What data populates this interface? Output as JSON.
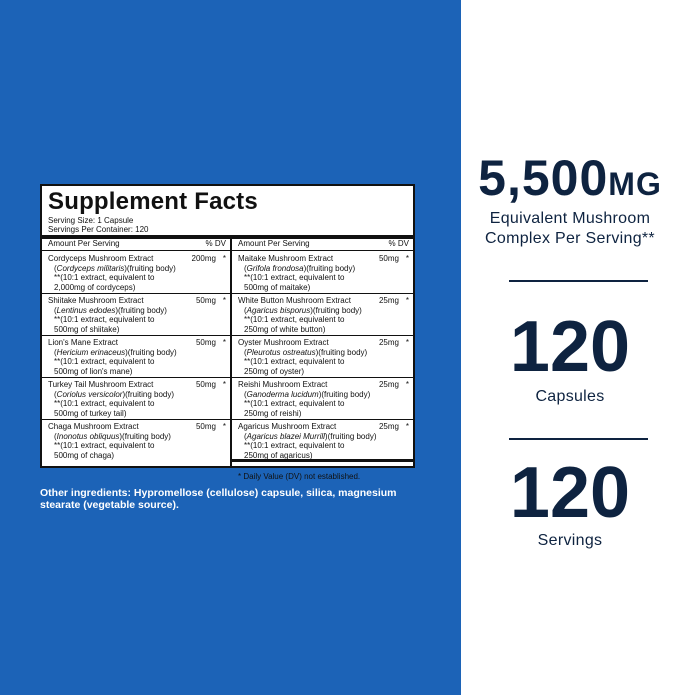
{
  "panel": {
    "title": "Supplement Facts",
    "serving_size": "Serving Size: 1 Capsule",
    "servings_per_container": "Servings Per Container: 120",
    "header_amount": "Amount Per Serving",
    "header_dv": "% DV",
    "left_items": [
      {
        "name": "Cordyceps Mushroom Extract",
        "amount": "200mg",
        "star": "*",
        "sci_pre": "(",
        "sci": "Cordyceps militaris",
        "sci_post": ")(fruiting body)",
        "eq1": "**(10:1 extract, equivalent to",
        "eq2": "2,000mg of cordyceps)"
      },
      {
        "name": "Shiitake Mushroom Extract",
        "amount": "50mg",
        "star": "*",
        "sci_pre": "(",
        "sci": "Lentinus edodes",
        "sci_post": ")(fruiting body)",
        "eq1": "**(10:1 extract, equivalent to",
        "eq2": "500mg of shiitake)"
      },
      {
        "name": "Lion's Mane Extract",
        "amount": "50mg",
        "star": "*",
        "sci_pre": "(",
        "sci": "Hericium erinaceus",
        "sci_post": ")(fruiting body)",
        "eq1": "**(10:1 extract, equivalent to",
        "eq2": "500mg of lion's mane)"
      },
      {
        "name": "Turkey Tail Mushroom Extract",
        "amount": "50mg",
        "star": "*",
        "sci_pre": "(",
        "sci": "Coriolus versicolor",
        "sci_post": ")(fruiting body)",
        "eq1": "**(10:1 extract, equivalent to",
        "eq2": "500mg of turkey tail)"
      },
      {
        "name": "Chaga Mushroom Extract",
        "amount": "50mg",
        "star": "*",
        "sci_pre": "(",
        "sci": "Inonotus obliquus",
        "sci_post": ")(fruiting body)",
        "eq1": "**(10:1 extract, equivalent to",
        "eq2": "500mg of chaga)"
      }
    ],
    "right_items": [
      {
        "name": "Maitake Mushroom Extract",
        "amount": "50mg",
        "star": "*",
        "sci_pre": "(",
        "sci": "Grifola frondosa",
        "sci_post": ")(fruiting body)",
        "eq1": "**(10:1 extract, equivalent to",
        "eq2": "500mg of maitake)"
      },
      {
        "name": "White Button Mushroom Extract",
        "amount": "25mg",
        "star": "*",
        "sci_pre": "(",
        "sci": "Agaricus bisporus",
        "sci_post": ")(fruiting body)",
        "eq1": "**(10:1 extract, equivalent to",
        "eq2": "250mg of white button)"
      },
      {
        "name": "Oyster Mushroom Extract",
        "amount": "25mg",
        "star": "*",
        "sci_pre": "(",
        "sci": "Pleurotus ostreatus",
        "sci_post": ")(fruiting body)",
        "eq1": "**(10:1 extract, equivalent to",
        "eq2": "250mg of oyster)"
      },
      {
        "name": "Reishi Mushroom Extract",
        "amount": "25mg",
        "star": "*",
        "sci_pre": "(",
        "sci": "Ganoderma lucidum",
        "sci_post": ")(fruiting body)",
        "eq1": "**(10:1 extract, equivalent to",
        "eq2": "250mg of reishi)"
      },
      {
        "name": "Agaricus Mushroom Extract",
        "amount": "25mg",
        "star": "*",
        "sci_pre": "(",
        "sci": "Agaricus blazei Murrill",
        "sci_post": ")(fruiting body)",
        "eq1": "**(10:1 extract, equivalent to",
        "eq2": "250mg of agaricus)"
      }
    ],
    "dv_note": "* Daily Value (DV) not established."
  },
  "other_ingredients": "Other ingredients: Hypromellose (cellulose) capsule, silica, magnesium stearate (vegetable source).",
  "stats": {
    "total_value": "5,500",
    "total_unit": "MG",
    "total_line1": "Equivalent Mushroom",
    "total_line2": "Complex Per Serving**",
    "capsules_value": "120",
    "capsules_label": "Capsules",
    "servings_value": "120",
    "servings_label": "Servings"
  },
  "colors": {
    "background_blue": "#1c63b7",
    "text_navy": "#0e2340"
  }
}
